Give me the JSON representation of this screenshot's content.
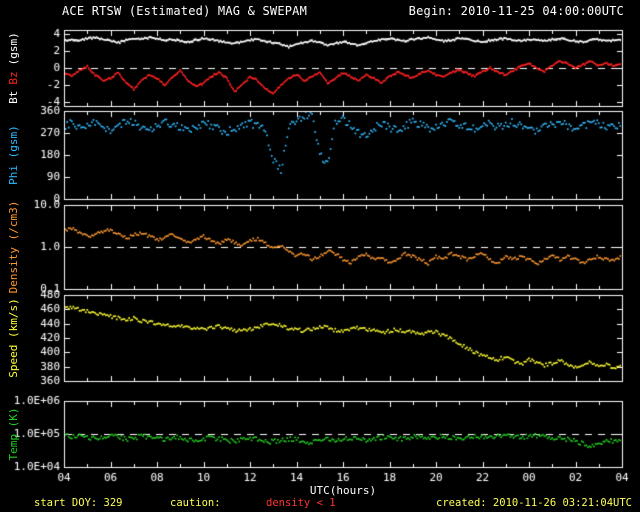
{
  "header": {
    "title": "ACE RTSW (Estimated) MAG & SWEPAM",
    "begin": "Begin: 2010-11-25 04:00:00UTC"
  },
  "footer": {
    "start_doy": "start DOY: 329",
    "caution_label": "caution:",
    "caution_value": "density < 1",
    "created": "created: 2010-11-26 03:21:04UTC"
  },
  "x_axis": {
    "label": "UTC(hours)",
    "range": [
      4,
      28
    ],
    "ticks": [
      "04",
      "06",
      "08",
      "10",
      "12",
      "14",
      "16",
      "18",
      "20",
      "22",
      "00",
      "02",
      "04"
    ]
  },
  "colors": {
    "background": "#000000",
    "frame": "#ffffff",
    "bt": "#ffffff",
    "bz": "#ff2222",
    "phi": "#33bbff",
    "density": "#ff9933",
    "speed": "#ffff33",
    "temp": "#22cc22",
    "footer_text": "#ffff55",
    "caution": "#ff3333"
  },
  "chart_data": [
    {
      "type": "scatter",
      "name": "magnetic-field",
      "scale": "linear",
      "ylim": [
        -4.5,
        4.5
      ],
      "yticks": [
        {
          "v": 4,
          "label": "4"
        },
        {
          "v": 2,
          "label": "2"
        },
        {
          "v": 0,
          "label": "0"
        },
        {
          "v": -2,
          "label": "-2"
        },
        {
          "v": -4,
          "label": "-4"
        }
      ],
      "ref_line": 0,
      "label": {
        "bt": "Bt",
        "bz": "Bz",
        "unit": "(gsm)"
      },
      "series": [
        {
          "name": "Bt",
          "color": "#ffffff",
          "mode": "line",
          "x_start": 4,
          "x_step": 0.3333,
          "y": [
            3.2,
            3.4,
            3.3,
            3.5,
            3.6,
            3.4,
            3.2,
            3.0,
            3.3,
            3.5,
            3.4,
            3.6,
            3.5,
            3.3,
            3.4,
            3.2,
            3.1,
            3.3,
            3.5,
            3.4,
            3.2,
            3.0,
            2.9,
            3.1,
            3.3,
            3.4,
            3.2,
            3.0,
            2.8,
            2.5,
            2.8,
            3.0,
            3.2,
            3.0,
            2.7,
            2.9,
            3.1,
            2.9,
            2.7,
            3.0,
            3.2,
            3.4,
            3.5,
            3.3,
            3.2,
            3.4,
            3.5,
            3.6,
            3.4,
            3.2,
            3.3,
            3.5,
            3.4,
            3.2,
            3.1,
            3.3,
            3.4,
            3.5,
            3.3,
            3.2,
            3.4,
            3.3,
            3.2,
            3.4,
            3.5,
            3.3,
            3.2,
            3.1,
            3.3,
            3.4,
            3.2,
            3.3,
            3.4
          ]
        },
        {
          "name": "Bz",
          "color": "#ff2222",
          "mode": "line",
          "x_start": 4,
          "x_step": 0.3333,
          "y": [
            -0.5,
            -1.0,
            -0.3,
            0.2,
            -0.8,
            -1.5,
            -1.2,
            -0.5,
            -1.8,
            -2.5,
            -1.5,
            -0.8,
            -1.2,
            -2.0,
            -1.0,
            -0.3,
            -1.5,
            -2.2,
            -1.8,
            -1.0,
            -0.5,
            -1.2,
            -2.8,
            -2.0,
            -1.0,
            -1.5,
            -2.5,
            -3.0,
            -2.0,
            -1.2,
            -0.8,
            -1.5,
            -1.0,
            -0.5,
            -1.8,
            -1.2,
            -0.6,
            -1.0,
            -1.5,
            -0.8,
            -1.2,
            -1.8,
            -1.0,
            -0.5,
            -0.8,
            -1.2,
            -0.6,
            -0.3,
            -0.8,
            -1.0,
            -0.5,
            -0.2,
            -0.6,
            -1.0,
            -0.4,
            0.0,
            -0.5,
            -0.8,
            -0.3,
            0.2,
            0.5,
            0.0,
            -0.4,
            0.3,
            0.8,
            0.5,
            0.0,
            0.4,
            0.8,
            0.3,
            0.6,
            0.2,
            0.5
          ]
        }
      ]
    },
    {
      "type": "scatter",
      "name": "phi-angle",
      "ylabel": "Phi (gsm)",
      "scale": "linear",
      "ylim": [
        0,
        360
      ],
      "yticks": [
        {
          "v": 360,
          "label": "360"
        },
        {
          "v": 270,
          "label": "270"
        },
        {
          "v": 180,
          "label": "180"
        },
        {
          "v": 90,
          "label": "90"
        },
        {
          "v": 0,
          "label": "0"
        }
      ],
      "ref_line": null,
      "series": [
        {
          "name": "Phi",
          "color": "#33bbff",
          "mode": "dots",
          "x_start": 4,
          "x_step": 0.3333,
          "y": [
            300,
            310,
            295,
            305,
            315,
            290,
            280,
            300,
            320,
            310,
            295,
            285,
            300,
            315,
            305,
            290,
            275,
            295,
            310,
            300,
            285,
            270,
            290,
            305,
            315,
            295,
            280,
            160,
            120,
            300,
            320,
            340,
            355,
            180,
            140,
            310,
            330,
            300,
            270,
            250,
            290,
            310,
            295,
            280,
            300,
            315,
            305,
            290,
            300,
            310,
            320,
            305,
            295,
            285,
            300,
            310,
            295,
            305,
            315,
            300,
            290,
            280,
            295,
            305,
            310,
            300,
            290,
            300,
            310,
            305,
            295,
            300,
            305
          ]
        }
      ]
    },
    {
      "type": "scatter",
      "name": "density",
      "ylabel": "Density (/cm3)",
      "scale": "log",
      "ylim": [
        0.1,
        10
      ],
      "yticks": [
        {
          "v": 10,
          "label": "10.0"
        },
        {
          "v": 1,
          "label": "1.0"
        },
        {
          "v": 0.1,
          "label": "0.1"
        }
      ],
      "ref_line": 1,
      "series": [
        {
          "name": "Density",
          "color": "#ff9933",
          "mode": "dots",
          "x_start": 4,
          "x_step": 0.3333,
          "y": [
            2.5,
            2.8,
            2.2,
            1.8,
            2.0,
            2.4,
            2.6,
            2.0,
            1.6,
            1.9,
            2.2,
            1.8,
            1.5,
            1.7,
            2.0,
            1.6,
            1.3,
            1.5,
            1.8,
            1.4,
            1.2,
            1.5,
            1.3,
            1.1,
            1.4,
            1.6,
            1.2,
            0.9,
            1.1,
            0.8,
            0.6,
            0.7,
            0.5,
            0.6,
            0.8,
            0.7,
            0.5,
            0.4,
            0.6,
            0.7,
            0.5,
            0.6,
            0.4,
            0.5,
            0.7,
            0.6,
            0.5,
            0.4,
            0.6,
            0.5,
            0.7,
            0.6,
            0.5,
            0.6,
            0.7,
            0.5,
            0.4,
            0.6,
            0.5,
            0.6,
            0.5,
            0.4,
            0.5,
            0.6,
            0.5,
            0.6,
            0.5,
            0.4,
            0.5,
            0.6,
            0.5,
            0.5,
            0.6
          ]
        }
      ]
    },
    {
      "type": "scatter",
      "name": "speed",
      "ylabel": "Speed (km/s)",
      "scale": "linear",
      "ylim": [
        360,
        480
      ],
      "yticks": [
        {
          "v": 480,
          "label": "480"
        },
        {
          "v": 460,
          "label": "460"
        },
        {
          "v": 440,
          "label": "440"
        },
        {
          "v": 420,
          "label": "420"
        },
        {
          "v": 400,
          "label": "400"
        },
        {
          "v": 380,
          "label": "380"
        },
        {
          "v": 360,
          "label": "360"
        }
      ],
      "ref_line": null,
      "series": [
        {
          "name": "Speed",
          "color": "#ffff33",
          "mode": "dots",
          "x_start": 4,
          "x_step": 0.3333,
          "y": [
            465,
            462,
            460,
            458,
            455,
            452,
            450,
            448,
            445,
            448,
            444,
            442,
            440,
            438,
            436,
            438,
            435,
            433,
            432,
            434,
            436,
            433,
            431,
            430,
            432,
            435,
            438,
            440,
            437,
            434,
            432,
            430,
            433,
            436,
            434,
            431,
            430,
            432,
            434,
            432,
            430,
            428,
            430,
            432,
            430,
            428,
            426,
            428,
            428,
            424,
            418,
            412,
            406,
            400,
            396,
            392,
            390,
            394,
            388,
            384,
            390,
            386,
            382,
            385,
            388,
            384,
            380,
            383,
            386,
            380,
            384,
            378,
            382
          ]
        }
      ]
    },
    {
      "type": "scatter",
      "name": "temperature",
      "ylabel": "Temp (K)",
      "scale": "log",
      "ylim": [
        10000,
        1000000
      ],
      "yticks": [
        {
          "v": 1000000,
          "label": "1.0E+06"
        },
        {
          "v": 100000,
          "label": "1.0E+05"
        },
        {
          "v": 10000,
          "label": "1.0E+04"
        }
      ],
      "ref_line": 100000,
      "series": [
        {
          "name": "Temp",
          "color": "#22cc22",
          "mode": "dots",
          "x_start": 4,
          "x_step": 0.3333,
          "y": [
            90000,
            85000,
            95000,
            80000,
            75000,
            85000,
            90000,
            80000,
            70000,
            75000,
            85000,
            80000,
            72000,
            68000,
            75000,
            80000,
            70000,
            65000,
            72000,
            78000,
            70000,
            65000,
            60000,
            68000,
            75000,
            70000,
            62000,
            58000,
            65000,
            72000,
            68000,
            60000,
            55000,
            62000,
            70000,
            65000,
            72000,
            78000,
            70000,
            65000,
            72000,
            80000,
            75000,
            68000,
            75000,
            82000,
            78000,
            72000,
            80000,
            85000,
            80000,
            75000,
            82000,
            88000,
            82000,
            78000,
            85000,
            90000,
            85000,
            80000,
            88000,
            92000,
            85000,
            80000,
            75000,
            70000,
            60000,
            50000,
            45000,
            55000,
            62000,
            58000,
            60000
          ]
        }
      ]
    }
  ]
}
